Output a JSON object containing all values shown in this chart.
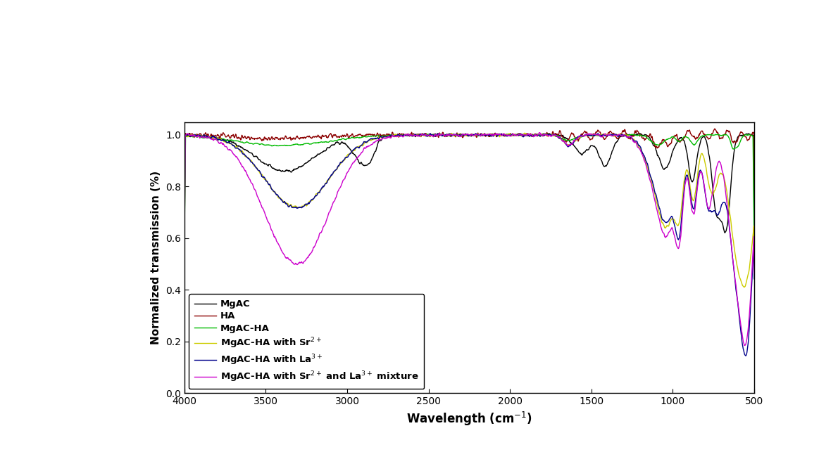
{
  "title": "",
  "xlabel": "Wavelength (cm$^{-1}$)",
  "ylabel": "Normalized transmission (%)",
  "xlim": [
    4000,
    500
  ],
  "ylim": [
    0.0,
    1.05
  ],
  "yticks": [
    0.0,
    0.2,
    0.4,
    0.6,
    0.8,
    1.0
  ],
  "xticks": [
    4000,
    3500,
    3000,
    2500,
    2000,
    1500,
    1000,
    500
  ],
  "colors": {
    "MgAC": "#000000",
    "HA": "#8B0000",
    "MgAC-HA": "#00BB00",
    "MgAC-HA_Sr": "#CCCC00",
    "MgAC-HA_La": "#00008B",
    "MgAC-HA_SrLa": "#CC00CC"
  },
  "legend_labels": {
    "MgAC": "MgAC",
    "HA": "HA",
    "MgAC-HA": "MgAC-HA",
    "MgAC-HA_Sr": "MgAC-HA with Sr$^{2+}$",
    "MgAC-HA_La": "MgAC-HA with La$^{3+}$",
    "MgAC-HA_SrLa": "MgAC-HA with Sr$^{2+}$ and La$^{3+}$ mixture"
  },
  "figsize": [
    11.9,
    6.43
  ],
  "dpi": 100,
  "background_color": "#ffffff"
}
